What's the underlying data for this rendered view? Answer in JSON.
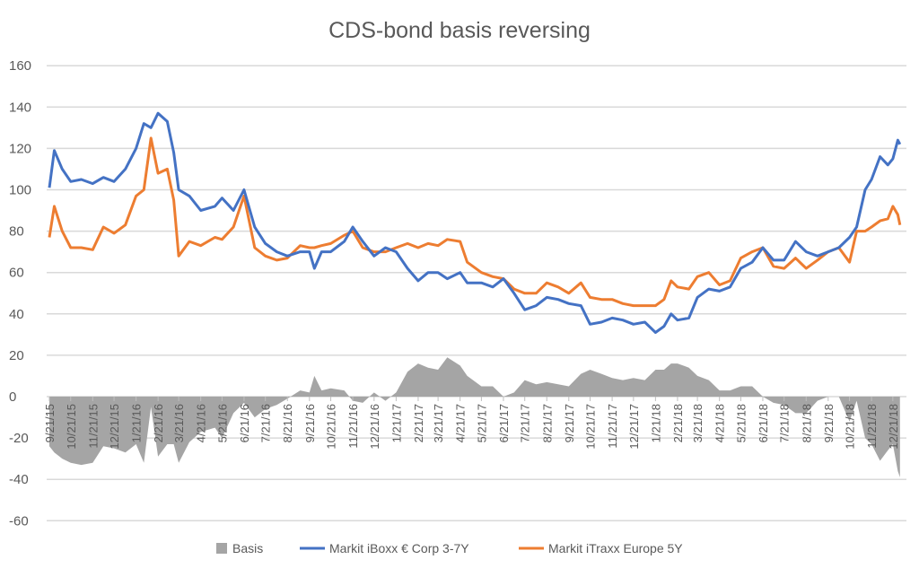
{
  "chart_data": {
    "type": "line",
    "title": "CDS-bond basis reversing",
    "xlabel": "",
    "ylabel": "",
    "ylim": [
      -60,
      160
    ],
    "y_ticks": [
      160,
      140,
      120,
      100,
      80,
      60,
      40,
      20,
      0,
      -20,
      -40,
      -60
    ],
    "x_tick_labels": [
      "9/21/15",
      "10/21/15",
      "11/21/15",
      "12/21/15",
      "1/21/16",
      "2/21/16",
      "3/21/16",
      "4/21/16",
      "5/21/16",
      "6/21/16",
      "7/21/16",
      "8/21/16",
      "9/21/16",
      "10/21/16",
      "11/21/16",
      "12/21/16",
      "1/21/17",
      "2/21/17",
      "3/21/17",
      "4/21/17",
      "5/21/17",
      "6/21/17",
      "7/21/17",
      "8/21/17",
      "9/21/17",
      "10/21/17",
      "11/21/17",
      "12/21/17",
      "1/21/18",
      "2/21/18",
      "3/21/18",
      "4/21/18",
      "5/21/18",
      "6/21/18",
      "7/21/18",
      "8/21/18",
      "9/21/18",
      "10/21/18",
      "11/21/18",
      "12/21/18"
    ],
    "grid": true,
    "legend_position": "bottom",
    "legend": [
      "Basis",
      "Markit iBoxx € Corp 3-7Y",
      "Markit iTraxx Europe 5Y"
    ],
    "series_types": {
      "basis": "area",
      "iboxx": "line",
      "itraxx": "line"
    },
    "colors": {
      "basis": "#a5a5a5",
      "iboxx": "#4472c4",
      "itraxx": "#ed7d31",
      "grid": "#d9d9d9"
    },
    "points": [
      {
        "date": "9/21/15",
        "iboxx": 101,
        "itraxx": 77,
        "basis": -24
      },
      {
        "date": "9/28/15",
        "iboxx": 119,
        "itraxx": 92,
        "basis": -27
      },
      {
        "date": "10/9/15",
        "iboxx": 110,
        "itraxx": 80,
        "basis": -30
      },
      {
        "date": "10/21/15",
        "iboxx": 104,
        "itraxx": 72,
        "basis": -32
      },
      {
        "date": "11/5/15",
        "iboxx": 105,
        "itraxx": 72,
        "basis": -33
      },
      {
        "date": "11/21/15",
        "iboxx": 103,
        "itraxx": 71,
        "basis": -32
      },
      {
        "date": "12/6/15",
        "iboxx": 106,
        "itraxx": 82,
        "basis": -24
      },
      {
        "date": "12/21/15",
        "iboxx": 104,
        "itraxx": 79,
        "basis": -25
      },
      {
        "date": "1/6/16",
        "iboxx": 110,
        "itraxx": 83,
        "basis": -27
      },
      {
        "date": "1/21/16",
        "iboxx": 120,
        "itraxx": 97,
        "basis": -23
      },
      {
        "date": "2/1/16",
        "iboxx": 132,
        "itraxx": 100,
        "basis": -32
      },
      {
        "date": "2/11/16",
        "iboxx": 130,
        "itraxx": 125,
        "basis": -5
      },
      {
        "date": "2/21/16",
        "iboxx": 137,
        "itraxx": 108,
        "basis": -29
      },
      {
        "date": "3/5/16",
        "iboxx": 133,
        "itraxx": 110,
        "basis": -23
      },
      {
        "date": "3/14/16",
        "iboxx": 118,
        "itraxx": 95,
        "basis": -23
      },
      {
        "date": "3/21/16",
        "iboxx": 100,
        "itraxx": 68,
        "basis": -32
      },
      {
        "date": "4/5/16",
        "iboxx": 97,
        "itraxx": 75,
        "basis": -22
      },
      {
        "date": "4/21/16",
        "iboxx": 90,
        "itraxx": 73,
        "basis": -17
      },
      {
        "date": "5/11/16",
        "iboxx": 92,
        "itraxx": 77,
        "basis": -15
      },
      {
        "date": "5/21/16",
        "iboxx": 96,
        "itraxx": 76,
        "basis": -20
      },
      {
        "date": "6/6/16",
        "iboxx": 90,
        "itraxx": 82,
        "basis": -8
      },
      {
        "date": "6/21/16",
        "iboxx": 100,
        "itraxx": 97,
        "basis": -3
      },
      {
        "date": "7/6/16",
        "iboxx": 82,
        "itraxx": 72,
        "basis": -10
      },
      {
        "date": "7/21/16",
        "iboxx": 74,
        "itraxx": 68,
        "basis": -6
      },
      {
        "date": "8/6/16",
        "iboxx": 70,
        "itraxx": 66,
        "basis": -4
      },
      {
        "date": "8/21/16",
        "iboxx": 68,
        "itraxx": 67,
        "basis": -1
      },
      {
        "date": "9/8/16",
        "iboxx": 70,
        "itraxx": 73,
        "basis": 3
      },
      {
        "date": "9/21/16",
        "iboxx": 70,
        "itraxx": 72,
        "basis": 2
      },
      {
        "date": "9/28/16",
        "iboxx": 62,
        "itraxx": 72,
        "basis": 10
      },
      {
        "date": "10/8/16",
        "iboxx": 70,
        "itraxx": 73,
        "basis": 3
      },
      {
        "date": "10/21/16",
        "iboxx": 70,
        "itraxx": 74,
        "basis": 4
      },
      {
        "date": "11/9/16",
        "iboxx": 75,
        "itraxx": 78,
        "basis": 3
      },
      {
        "date": "11/21/16",
        "iboxx": 82,
        "itraxx": 80,
        "basis": -2
      },
      {
        "date": "12/5/16",
        "iboxx": 75,
        "itraxx": 72,
        "basis": -3
      },
      {
        "date": "12/21/16",
        "iboxx": 68,
        "itraxx": 70,
        "basis": 2
      },
      {
        "date": "1/6/17",
        "iboxx": 72,
        "itraxx": 70,
        "basis": -2
      },
      {
        "date": "1/21/17",
        "iboxx": 70,
        "itraxx": 72,
        "basis": 2
      },
      {
        "date": "2/6/17",
        "iboxx": 62,
        "itraxx": 74,
        "basis": 12
      },
      {
        "date": "2/21/17",
        "iboxx": 56,
        "itraxx": 72,
        "basis": 16
      },
      {
        "date": "3/7/17",
        "iboxx": 60,
        "itraxx": 74,
        "basis": 14
      },
      {
        "date": "3/21/17",
        "iboxx": 60,
        "itraxx": 73,
        "basis": 13
      },
      {
        "date": "4/3/17",
        "iboxx": 57,
        "itraxx": 76,
        "basis": 19
      },
      {
        "date": "4/21/17",
        "iboxx": 60,
        "itraxx": 75,
        "basis": 15
      },
      {
        "date": "5/1/17",
        "iboxx": 55,
        "itraxx": 65,
        "basis": 10
      },
      {
        "date": "5/21/17",
        "iboxx": 55,
        "itraxx": 60,
        "basis": 5
      },
      {
        "date": "6/6/17",
        "iboxx": 53,
        "itraxx": 58,
        "basis": 5
      },
      {
        "date": "6/21/17",
        "iboxx": 57,
        "itraxx": 57,
        "basis": 0
      },
      {
        "date": "7/6/17",
        "iboxx": 50,
        "itraxx": 52,
        "basis": 2
      },
      {
        "date": "7/21/17",
        "iboxx": 42,
        "itraxx": 50,
        "basis": 8
      },
      {
        "date": "8/6/17",
        "iboxx": 44,
        "itraxx": 50,
        "basis": 6
      },
      {
        "date": "8/21/17",
        "iboxx": 48,
        "itraxx": 55,
        "basis": 7
      },
      {
        "date": "9/6/17",
        "iboxx": 47,
        "itraxx": 53,
        "basis": 6
      },
      {
        "date": "9/21/17",
        "iboxx": 45,
        "itraxx": 50,
        "basis": 5
      },
      {
        "date": "10/8/17",
        "iboxx": 44,
        "itraxx": 55,
        "basis": 11
      },
      {
        "date": "10/21/17",
        "iboxx": 35,
        "itraxx": 48,
        "basis": 13
      },
      {
        "date": "11/6/17",
        "iboxx": 36,
        "itraxx": 47,
        "basis": 11
      },
      {
        "date": "11/21/17",
        "iboxx": 38,
        "itraxx": 47,
        "basis": 9
      },
      {
        "date": "12/6/17",
        "iboxx": 37,
        "itraxx": 45,
        "basis": 8
      },
      {
        "date": "12/21/17",
        "iboxx": 35,
        "itraxx": 44,
        "basis": 9
      },
      {
        "date": "1/6/18",
        "iboxx": 36,
        "itraxx": 44,
        "basis": 8
      },
      {
        "date": "1/21/18",
        "iboxx": 31,
        "itraxx": 44,
        "basis": 13
      },
      {
        "date": "2/2/18",
        "iboxx": 34,
        "itraxx": 47,
        "basis": 13
      },
      {
        "date": "2/12/18",
        "iboxx": 40,
        "itraxx": 56,
        "basis": 16
      },
      {
        "date": "2/21/18",
        "iboxx": 37,
        "itraxx": 53,
        "basis": 16
      },
      {
        "date": "3/9/18",
        "iboxx": 38,
        "itraxx": 52,
        "basis": 14
      },
      {
        "date": "3/21/18",
        "iboxx": 48,
        "itraxx": 58,
        "basis": 10
      },
      {
        "date": "4/6/18",
        "iboxx": 52,
        "itraxx": 60,
        "basis": 8
      },
      {
        "date": "4/21/18",
        "iboxx": 51,
        "itraxx": 54,
        "basis": 3
      },
      {
        "date": "5/6/18",
        "iboxx": 53,
        "itraxx": 56,
        "basis": 3
      },
      {
        "date": "5/21/18",
        "iboxx": 62,
        "itraxx": 67,
        "basis": 5
      },
      {
        "date": "6/6/18",
        "iboxx": 65,
        "itraxx": 70,
        "basis": 5
      },
      {
        "date": "6/21/18",
        "iboxx": 72,
        "itraxx": 72,
        "basis": 0
      },
      {
        "date": "7/6/18",
        "iboxx": 66,
        "itraxx": 63,
        "basis": -3
      },
      {
        "date": "7/21/18",
        "iboxx": 66,
        "itraxx": 62,
        "basis": -4
      },
      {
        "date": "8/6/18",
        "iboxx": 75,
        "itraxx": 67,
        "basis": -8
      },
      {
        "date": "8/21/18",
        "iboxx": 70,
        "itraxx": 62,
        "basis": -8
      },
      {
        "date": "9/6/18",
        "iboxx": 68,
        "itraxx": 66,
        "basis": -2
      },
      {
        "date": "9/21/18",
        "iboxx": 70,
        "itraxx": 70,
        "basis": 0
      },
      {
        "date": "10/6/18",
        "iboxx": 72,
        "itraxx": 72,
        "basis": 0
      },
      {
        "date": "10/21/18",
        "iboxx": 77,
        "itraxx": 65,
        "basis": -12
      },
      {
        "date": "10/31/18",
        "iboxx": 82,
        "itraxx": 80,
        "basis": -2
      },
      {
        "date": "11/12/18",
        "iboxx": 100,
        "itraxx": 80,
        "basis": -20
      },
      {
        "date": "11/21/18",
        "iboxx": 105,
        "itraxx": 82,
        "basis": -23
      },
      {
        "date": "12/3/18",
        "iboxx": 116,
        "itraxx": 85,
        "basis": -31
      },
      {
        "date": "12/14/18",
        "iboxx": 112,
        "itraxx": 86,
        "basis": -26
      },
      {
        "date": "12/21/18",
        "iboxx": 115,
        "itraxx": 92,
        "basis": -23
      },
      {
        "date": "12/28/18",
        "iboxx": 124,
        "itraxx": 88,
        "basis": -36
      },
      {
        "date": "12/31/18",
        "iboxx": 122,
        "itraxx": 83,
        "basis": -39
      }
    ]
  }
}
